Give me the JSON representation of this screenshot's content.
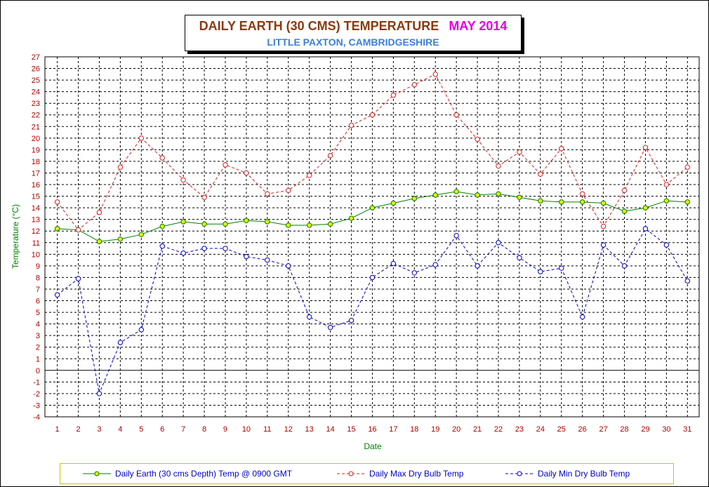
{
  "title": {
    "main": "DAILY EARTH (30 CMS) TEMPERATURE",
    "month": "MAY 2014",
    "subtitle": "LITTLE PAXTON, CAMBRIDGESHIRE"
  },
  "colors": {
    "earth": "#008000",
    "earth_marker": "#e8f000",
    "max": "#d02020",
    "min": "#0000c0",
    "tick_x": "#b00000",
    "tick_y": "#b00000",
    "ylabel": "#008000",
    "xlabel": "#008000"
  },
  "chart_data": {
    "type": "line",
    "xlabel": "Date",
    "ylabel": "Temperature (°C)",
    "ylim": [
      -4,
      27
    ],
    "grid": true,
    "legend_position": "bottom",
    "x": [
      1,
      2,
      3,
      4,
      5,
      6,
      7,
      8,
      9,
      10,
      11,
      12,
      13,
      14,
      15,
      16,
      17,
      18,
      19,
      20,
      21,
      22,
      23,
      24,
      25,
      26,
      27,
      28,
      29,
      30,
      31
    ],
    "series": [
      {
        "name": "Daily Earth (30 cms Depth) Temp @ 0900 GMT",
        "style": "solid",
        "values": [
          12.2,
          12.1,
          11.1,
          11.3,
          11.7,
          12.4,
          12.8,
          12.6,
          12.6,
          12.9,
          12.8,
          12.5,
          12.5,
          12.6,
          13.1,
          14.0,
          14.4,
          14.8,
          15.1,
          15.4,
          15.1,
          15.2,
          14.9,
          14.6,
          14.5,
          14.5,
          14.4,
          13.7,
          14.0,
          14.6,
          14.5
        ]
      },
      {
        "name": "Daily Max Dry Bulb Temp",
        "style": "dashed",
        "values": [
          14.5,
          12.1,
          13.6,
          17.5,
          20.0,
          18.3,
          16.4,
          14.9,
          17.7,
          17.0,
          15.2,
          15.5,
          16.8,
          18.5,
          21.1,
          22.0,
          23.7,
          24.6,
          25.5,
          22.0,
          19.9,
          17.6,
          18.8,
          16.9,
          19.1,
          15.2,
          12.4,
          15.5,
          19.2,
          16.0,
          17.5
        ]
      },
      {
        "name": "Daily Min Dry Bulb Temp",
        "style": "dashed",
        "values": [
          6.5,
          7.9,
          -2.0,
          2.4,
          3.5,
          10.7,
          10.1,
          10.5,
          10.5,
          9.8,
          9.5,
          9.0,
          4.6,
          3.7,
          4.3,
          8.0,
          9.2,
          8.4,
          9.1,
          11.6,
          9.0,
          11.0,
          9.7,
          8.5,
          8.8,
          4.6,
          10.8,
          9.0,
          12.2,
          10.8,
          7.7
        ]
      }
    ]
  }
}
